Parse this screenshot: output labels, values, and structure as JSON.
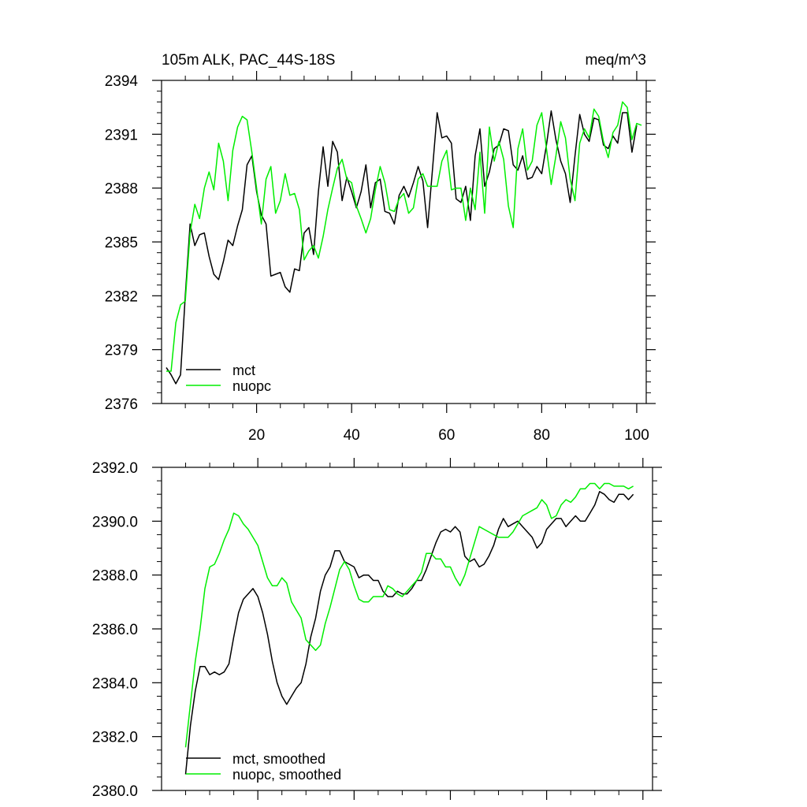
{
  "chart_data": [
    {
      "type": "line",
      "title": "105m ALK, PAC_44S-18S",
      "units": "meq/m^3",
      "xlim": [
        0,
        102
      ],
      "ylim": [
        2376,
        2394
      ],
      "xticks": [
        20,
        40,
        60,
        80,
        100
      ],
      "xtick_labels": [
        "20",
        "40",
        "60",
        "80",
        "100"
      ],
      "yticks": [
        2376,
        2379,
        2382,
        2385,
        2388,
        2391,
        2394
      ],
      "ytick_labels": [
        "2376",
        "2379",
        "2382",
        "2385",
        "2388",
        "2391",
        "2394"
      ],
      "x_start": 1,
      "legend": {
        "position": "bottom-left"
      },
      "series": [
        {
          "name": "mct",
          "color": "#000000",
          "values": [
            2378.0,
            2377.6,
            2377.1,
            2377.6,
            2382.0,
            2386.0,
            2384.8,
            2385.4,
            2385.5,
            2384.2,
            2383.2,
            2382.9,
            2383.9,
            2385.1,
            2384.8,
            2385.9,
            2386.8,
            2389.3,
            2389.8,
            2387.8,
            2386.5,
            2386.0,
            2383.1,
            2383.2,
            2383.3,
            2382.5,
            2382.2,
            2383.5,
            2383.4,
            2385.5,
            2385.8,
            2384.3,
            2387.8,
            2390.3,
            2388.1,
            2390.6,
            2390.0,
            2387.3,
            2388.6,
            2387.8,
            2386.9,
            2387.8,
            2389.3,
            2386.9,
            2388.3,
            2388.5,
            2386.7,
            2386.6,
            2386.0,
            2387.6,
            2388.1,
            2387.5,
            2388.3,
            2389.2,
            2388.4,
            2385.8,
            2389.0,
            2392.2,
            2390.8,
            2390.9,
            2390.5,
            2387.4,
            2387.2,
            2388.1,
            2386.2,
            2389.8,
            2391.3,
            2388.1,
            2388.9,
            2390.2,
            2390.4,
            2391.3,
            2391.2,
            2389.3,
            2389.0,
            2389.8,
            2388.5,
            2388.6,
            2389.2,
            2388.8,
            2390.4,
            2392.3,
            2390.7,
            2389.5,
            2388.8,
            2387.2,
            2389.8,
            2392.1,
            2391.0,
            2390.6,
            2391.9,
            2391.8,
            2390.4,
            2390.2,
            2390.9,
            2390.5,
            2392.2,
            2392.2,
            2390.0,
            2391.5
          ]
        },
        {
          "name": "nuopc",
          "color": "#00ee00",
          "values": [
            2377.8,
            2377.8,
            2380.5,
            2381.5,
            2381.7,
            2385.5,
            2387.1,
            2386.3,
            2388.0,
            2388.9,
            2387.9,
            2390.5,
            2389.5,
            2387.3,
            2390.1,
            2391.4,
            2392.0,
            2391.8,
            2390.0,
            2388.0,
            2386.0,
            2388.5,
            2389.2,
            2386.6,
            2387.3,
            2388.8,
            2387.6,
            2387.7,
            2386.8,
            2384.0,
            2384.5,
            2384.8,
            2384.1,
            2385.3,
            2386.8,
            2388.0,
            2389.1,
            2389.6,
            2388.5,
            2388.3,
            2387.0,
            2386.3,
            2385.5,
            2386.3,
            2387.9,
            2389.2,
            2388.3,
            2386.8,
            2386.7,
            2387.4,
            2387.7,
            2386.6,
            2386.9,
            2388.5,
            2388.8,
            2388.1,
            2388.1,
            2388.1,
            2389.5,
            2390.1,
            2387.9,
            2388.0,
            2388.0,
            2386.2,
            2388.0,
            2386.8,
            2390.0,
            2386.6,
            2391.4,
            2389.5,
            2390.6,
            2389.6,
            2387.0,
            2385.8,
            2390.2,
            2391.3,
            2389.0,
            2389.5,
            2391.5,
            2392.2,
            2390.2,
            2388.2,
            2389.8,
            2391.7,
            2390.8,
            2388.5,
            2387.3,
            2390.5,
            2391.3,
            2390.8,
            2392.4,
            2392.0,
            2390.6,
            2389.7,
            2391.1,
            2391.5,
            2392.8,
            2392.5,
            2390.7,
            2391.6,
            2391.5
          ]
        }
      ]
    },
    {
      "type": "line",
      "xlim": [
        0,
        102
      ],
      "ylim": [
        2380,
        2392
      ],
      "xticks": [
        20,
        40,
        60,
        80,
        100
      ],
      "yticks": [
        2380,
        2382,
        2384,
        2386,
        2388,
        2390,
        2392
      ],
      "ytick_labels": [
        "2380.0",
        "2382.0",
        "2384.0",
        "2386.0",
        "2388.0",
        "2390.0",
        "2392.0"
      ],
      "x_start": 5,
      "legend": {
        "position": "bottom-left"
      },
      "series": [
        {
          "name": "mct, smoothed",
          "color": "#000000",
          "values": [
            2380.6,
            2382.4,
            2383.7,
            2384.6,
            2384.6,
            2384.3,
            2384.4,
            2384.3,
            2384.4,
            2384.7,
            2385.7,
            2386.6,
            2387.1,
            2387.3,
            2387.5,
            2387.2,
            2386.6,
            2385.8,
            2384.8,
            2384.0,
            2383.5,
            2383.2,
            2383.5,
            2383.8,
            2384.0,
            2384.7,
            2385.7,
            2386.4,
            2387.4,
            2388.0,
            2388.3,
            2388.9,
            2388.9,
            2388.5,
            2388.4,
            2388.3,
            2387.9,
            2388.0,
            2388.0,
            2387.8,
            2387.8,
            2387.4,
            2387.2,
            2387.2,
            2387.4,
            2387.3,
            2387.3,
            2387.5,
            2387.8,
            2387.8,
            2388.2,
            2388.7,
            2389.2,
            2389.6,
            2389.7,
            2389.6,
            2389.8,
            2389.6,
            2388.7,
            2388.5,
            2388.6,
            2388.3,
            2388.4,
            2388.7,
            2389.1,
            2389.7,
            2390.1,
            2389.8,
            2389.9,
            2390.0,
            2389.8,
            2389.6,
            2389.4,
            2389.0,
            2389.2,
            2389.7,
            2389.9,
            2390.1,
            2390.1,
            2389.8,
            2390.0,
            2390.2,
            2390.0,
            2390.0,
            2390.3,
            2390.6,
            2391.1,
            2391.0,
            2390.8,
            2390.7,
            2391.0,
            2391.0,
            2390.8,
            2391.0
          ]
        },
        {
          "name": "nuopc, smoothed",
          "color": "#00ee00",
          "values": [
            2381.6,
            2383.2,
            2384.8,
            2386.0,
            2387.5,
            2388.3,
            2388.4,
            2388.8,
            2389.3,
            2389.7,
            2390.3,
            2390.2,
            2389.9,
            2389.7,
            2389.4,
            2389.1,
            2388.5,
            2387.9,
            2387.6,
            2387.6,
            2387.9,
            2387.7,
            2387.0,
            2386.7,
            2386.4,
            2385.6,
            2385.4,
            2385.2,
            2385.4,
            2386.2,
            2386.8,
            2387.5,
            2388.2,
            2388.5,
            2388.2,
            2387.6,
            2387.1,
            2387.0,
            2387.0,
            2387.2,
            2387.2,
            2387.2,
            2387.6,
            2387.5,
            2387.3,
            2387.2,
            2387.4,
            2387.6,
            2387.8,
            2388.1,
            2388.8,
            2388.8,
            2388.6,
            2388.6,
            2388.3,
            2388.3,
            2387.9,
            2387.6,
            2388.0,
            2388.6,
            2389.2,
            2389.8,
            2389.7,
            2389.6,
            2389.5,
            2389.4,
            2389.4,
            2389.4,
            2389.6,
            2389.9,
            2390.2,
            2390.3,
            2390.4,
            2390.5,
            2390.8,
            2390.6,
            2390.1,
            2390.2,
            2390.6,
            2390.8,
            2390.7,
            2390.9,
            2391.2,
            2391.2,
            2391.4,
            2391.4,
            2391.2,
            2391.4,
            2391.4,
            2391.3,
            2391.3,
            2391.3,
            2391.2,
            2391.3
          ]
        }
      ]
    }
  ]
}
